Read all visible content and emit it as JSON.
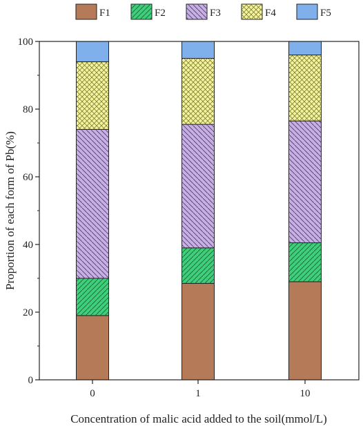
{
  "chart_data": {
    "type": "bar",
    "stacked": true,
    "categories": [
      "0",
      "1",
      "10"
    ],
    "series": [
      {
        "name": "F1",
        "values": [
          19,
          28.5,
          29
        ],
        "color": "#b57a57",
        "pattern": "solid"
      },
      {
        "name": "F2",
        "values": [
          11,
          10.5,
          11.5
        ],
        "color": "#3ecf7a",
        "pattern": "diagonal-forward"
      },
      {
        "name": "F3",
        "values": [
          44,
          36.5,
          36
        ],
        "color": "#c7aee3",
        "pattern": "diagonal-back"
      },
      {
        "name": "F4",
        "values": [
          20,
          19.5,
          19.5
        ],
        "color": "#f3f39a",
        "pattern": "crosshatch"
      },
      {
        "name": "F5",
        "values": [
          6,
          5,
          4
        ],
        "color": "#7fb0ec",
        "pattern": "solid"
      }
    ],
    "xlabel": "Concentration of malic acid added to the soil(mmol/L)",
    "ylabel": "Proportion of each form of Pb(%)",
    "ylim": [
      0,
      100
    ],
    "yticks": [
      0,
      20,
      40,
      60,
      80,
      100
    ],
    "grid": false,
    "legend_position": "top"
  }
}
